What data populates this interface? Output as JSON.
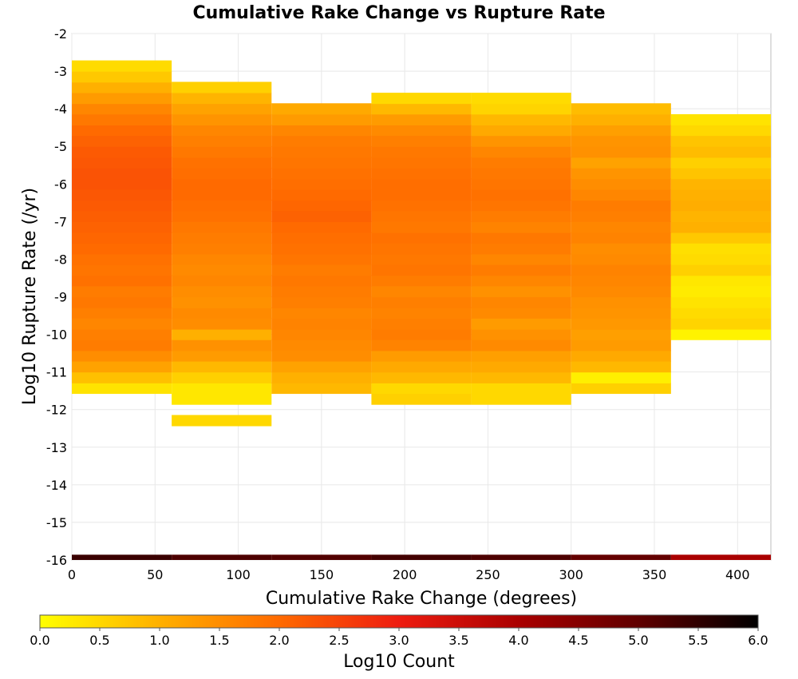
{
  "chart_data": {
    "type": "heatmap",
    "title": "Cumulative Rake Change vs Rupture Rate",
    "xlabel": "Cumulative Rake Change (degrees)",
    "ylabel": "Log10 Rupture Rate (/yr)",
    "xlim": [
      0,
      420
    ],
    "ylim": [
      -16,
      -2
    ],
    "x_ticks": [
      "0",
      "50",
      "100",
      "150",
      "200",
      "250",
      "300",
      "350",
      "400"
    ],
    "y_ticks": [
      "-2",
      "-3",
      "-4",
      "-5",
      "-6",
      "-7",
      "-8",
      "-9",
      "-10",
      "-11",
      "-12",
      "-13",
      "-14",
      "-15",
      "-16"
    ],
    "grid": true,
    "bin_width_x": 60,
    "bin_height_y": 0.2857,
    "color_scale": {
      "label": "Log10 Count",
      "min": 0.0,
      "max": 6.0,
      "colormap": "yellow-orange-red-black",
      "ticks": [
        "0.0",
        "0.5",
        "1.0",
        "1.5",
        "2.0",
        "2.5",
        "3.0",
        "3.5",
        "4.0",
        "4.5",
        "5.0",
        "5.5",
        "6.0"
      ]
    },
    "columns": [
      {
        "x_start": 0,
        "x_end": 60,
        "y_bin_starts": [
          -11.57,
          -11.29,
          -11.0,
          -10.71,
          -10.43,
          -10.14,
          -9.86,
          -9.57,
          -9.29,
          -9.0,
          -8.71,
          -8.43,
          -8.14,
          -7.86,
          -7.57,
          -7.29,
          -7.0,
          -6.71,
          -6.43,
          -6.14,
          -5.86,
          -5.57,
          -5.29,
          -5.0,
          -4.71,
          -4.43,
          -4.14,
          -3.86,
          -3.57,
          -3.29,
          -3.0
        ],
        "values": [
          0.35,
          0.8,
          1.2,
          1.5,
          1.75,
          1.7,
          1.6,
          1.7,
          1.8,
          1.75,
          1.9,
          1.85,
          1.9,
          2.0,
          2.05,
          2.1,
          2.15,
          2.2,
          2.25,
          2.3,
          2.3,
          2.25,
          2.2,
          2.1,
          2.0,
          1.8,
          1.6,
          1.3,
          1.0,
          0.7,
          0.45
        ]
      },
      {
        "x_start": 60,
        "x_end": 120,
        "y_bin_starts": [
          -12.43,
          -11.86,
          -11.57,
          -11.29,
          -11.0,
          -10.71,
          -10.43,
          -10.14,
          -9.86,
          -9.57,
          -9.29,
          -9.0,
          -8.71,
          -8.43,
          -8.14,
          -7.86,
          -7.57,
          -7.29,
          -7.0,
          -6.71,
          -6.43,
          -6.14,
          -5.86,
          -5.57,
          -5.29,
          -5.0,
          -4.71,
          -4.43,
          -4.14,
          -3.86,
          -3.57
        ],
        "values": [
          0.5,
          0.3,
          0.3,
          0.6,
          0.9,
          1.3,
          1.45,
          1.0,
          1.5,
          1.55,
          1.45,
          1.5,
          1.6,
          1.55,
          1.6,
          1.7,
          1.75,
          1.8,
          1.9,
          1.95,
          2.0,
          2.0,
          1.95,
          1.9,
          1.8,
          1.7,
          1.6,
          1.4,
          1.2,
          0.95,
          0.6
        ]
      },
      {
        "x_start": 120,
        "x_end": 180,
        "y_bin_starts": [
          -11.57,
          -11.29,
          -11.0,
          -10.71,
          -10.43,
          -10.14,
          -9.86,
          -9.57,
          -9.29,
          -9.0,
          -8.71,
          -8.43,
          -8.14,
          -7.86,
          -7.57,
          -7.29,
          -7.0,
          -6.71,
          -6.43,
          -6.14,
          -5.86,
          -5.57,
          -5.29,
          -5.0,
          -4.71,
          -4.43,
          -4.14
        ],
        "values": [
          0.9,
          1.0,
          1.2,
          1.5,
          1.55,
          1.6,
          1.65,
          1.6,
          1.7,
          1.75,
          1.8,
          1.75,
          1.85,
          1.9,
          1.95,
          2.0,
          2.1,
          2.05,
          2.0,
          1.95,
          1.9,
          1.85,
          1.8,
          1.75,
          1.6,
          1.3,
          1.1
        ]
      },
      {
        "x_start": 180,
        "x_end": 240,
        "y_bin_starts": [
          -11.86,
          -11.57,
          -11.29,
          -11.0,
          -10.71,
          -10.43,
          -10.14,
          -9.86,
          -9.57,
          -9.29,
          -9.0,
          -8.71,
          -8.43,
          -8.14,
          -7.86,
          -7.57,
          -7.29,
          -7.0,
          -6.71,
          -6.43,
          -6.14,
          -5.86,
          -5.57,
          -5.29,
          -5.0,
          -4.71,
          -4.43,
          -4.14,
          -3.86
        ],
        "values": [
          0.6,
          0.5,
          0.9,
          1.1,
          1.3,
          1.65,
          1.75,
          1.7,
          1.65,
          1.7,
          1.6,
          1.75,
          1.85,
          1.8,
          1.85,
          1.9,
          1.8,
          1.85,
          1.9,
          1.95,
          1.95,
          1.9,
          1.85,
          1.8,
          1.7,
          1.55,
          1.3,
          0.9,
          0.5
        ]
      },
      {
        "x_start": 240,
        "x_end": 300,
        "y_bin_starts": [
          -11.86,
          -11.57,
          -11.29,
          -11.0,
          -10.71,
          -10.43,
          -10.14,
          -9.86,
          -9.57,
          -9.29,
          -9.0,
          -8.71,
          -8.43,
          -8.14,
          -7.86,
          -7.57,
          -7.29,
          -7.0,
          -6.71,
          -6.43,
          -6.14,
          -5.86,
          -5.57,
          -5.29,
          -5.0,
          -4.71,
          -4.43,
          -4.14,
          -3.86
        ],
        "values": [
          0.5,
          0.5,
          0.9,
          1.1,
          1.25,
          1.55,
          1.45,
          1.3,
          1.55,
          1.6,
          1.45,
          1.6,
          1.75,
          1.6,
          1.75,
          1.8,
          1.65,
          1.75,
          1.85,
          1.9,
          1.85,
          1.8,
          1.75,
          1.6,
          1.4,
          1.1,
          0.9,
          0.55,
          0.45
        ]
      },
      {
        "x_start": 300,
        "x_end": 360,
        "y_bin_starts": [
          -11.57,
          -11.29,
          -11.0,
          -10.71,
          -10.43,
          -10.14,
          -9.86,
          -9.57,
          -9.29,
          -9.0,
          -8.71,
          -8.43,
          -8.14,
          -7.86,
          -7.57,
          -7.29,
          -7.0,
          -6.71,
          -6.43,
          -6.14,
          -5.86,
          -5.57,
          -5.29,
          -5.0,
          -4.71,
          -4.43,
          -4.14
        ],
        "values": [
          0.6,
          0.2,
          0.9,
          1.1,
          1.3,
          1.25,
          1.35,
          1.4,
          1.45,
          1.55,
          1.6,
          1.65,
          1.55,
          1.5,
          1.65,
          1.6,
          1.7,
          1.75,
          1.6,
          1.5,
          1.4,
          1.2,
          1.45,
          1.4,
          1.25,
          1.0,
          0.85
        ]
      },
      {
        "x_start": 360,
        "x_end": 420,
        "y_bin_starts": [
          -10.14,
          -9.86,
          -9.57,
          -9.29,
          -9.0,
          -8.71,
          -8.43,
          -8.14,
          -7.86,
          -7.57,
          -7.29,
          -7.0,
          -6.71,
          -6.43,
          -6.14,
          -5.86,
          -5.57,
          -5.29,
          -5.0,
          -4.71,
          -4.43
        ],
        "values": [
          0.15,
          0.55,
          0.45,
          0.35,
          0.25,
          0.3,
          0.6,
          0.45,
          0.4,
          0.7,
          1.0,
          0.95,
          1.05,
          1.0,
          0.95,
          0.75,
          0.6,
          0.85,
          0.75,
          0.5,
          0.35
        ]
      }
    ],
    "bottom_row": {
      "y_start": -16.0,
      "y_end": -15.86,
      "values_by_column": [
        5.4,
        5.2,
        5.15,
        5.3,
        5.2,
        4.95,
        4.0
      ]
    }
  }
}
